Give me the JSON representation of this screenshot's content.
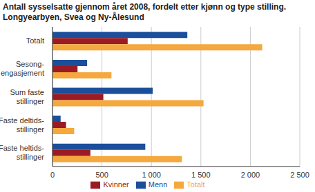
{
  "chart_data": {
    "type": "bar",
    "orientation": "horizontal",
    "title": "Antall sysselsatte gjennom året 2008, fordelt etter kjønn og type stilling. Longyearbyen, Svea og Ny-Ålesund",
    "categories": [
      "Totalt",
      "Sesong-engasjement",
      "Sum faste stillinger",
      "Faste deltids-stillinger",
      "Faste heltids-stillinger"
    ],
    "series": [
      {
        "name": "Menn",
        "color": "#1b4f9c",
        "values": [
          1363,
          350,
          1013,
          82,
          938
        ]
      },
      {
        "name": "Kvinner",
        "color": "#9b1b24",
        "values": [
          760,
          253,
          514,
          137,
          383
        ]
      },
      {
        "name": "Totalt",
        "color": "#f4a83e",
        "values": [
          2120,
          596,
          1527,
          219,
          1308
        ]
      }
    ],
    "xlim": [
      0,
      2500
    ],
    "xticks": [
      0,
      500,
      {
        "value": 1000,
        "label": "1 000"
      },
      {
        "value": 1500,
        "label": "1 500"
      },
      {
        "value": 2000,
        "label": "2 000"
      },
      {
        "value": 2500,
        "label": "2 500"
      }
    ],
    "grid": true,
    "legend": "bottom"
  }
}
